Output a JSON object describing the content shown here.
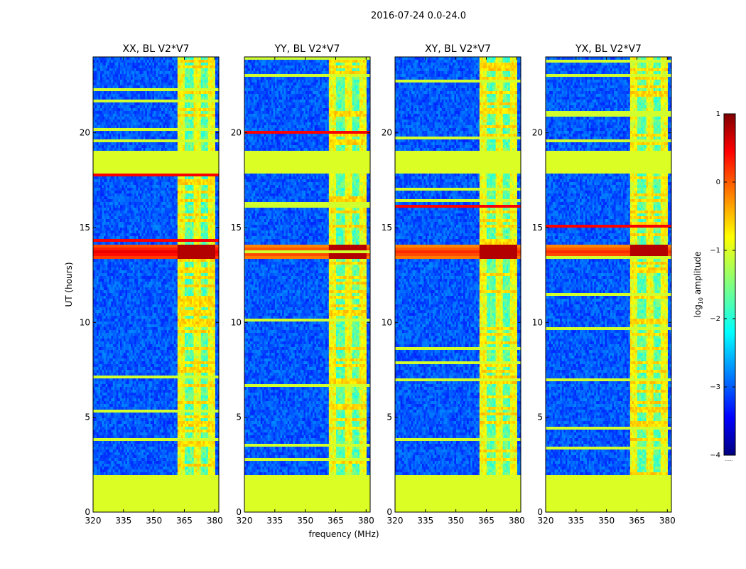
{
  "chart_data": {
    "type": "heatmap",
    "suptitle": "2016-07-24 0.0-24.0",
    "xlabel": "frequency (MHz)",
    "ylabel": "UT (hours)",
    "xlim": [
      320,
      382
    ],
    "ylim": [
      0,
      24
    ],
    "xticks": [
      320,
      335,
      350,
      365,
      380
    ],
    "yticks": [
      0,
      5,
      10,
      15,
      20
    ],
    "panels": [
      {
        "title": "XX, BL V2*V7"
      },
      {
        "title": "YY, BL V2*V7"
      },
      {
        "title": "XY, BL V2*V7"
      },
      {
        "title": "YX, BL V2*V7"
      }
    ],
    "colorbar": {
      "label_prefix": "log",
      "label_sub": "10",
      "label_suffix": " amplitude",
      "range": [
        -4,
        1
      ],
      "ticks": [
        1,
        0,
        -1,
        -2,
        -3,
        -4
      ],
      "tick_labels": [
        "1",
        "0",
        "−1",
        "−2",
        "−3",
        "−4"
      ],
      "extra_label": "......",
      "colormap": "jet"
    },
    "features": {
      "flagged_bands_ut": [
        [
          0,
          2.0
        ],
        [
          17.8,
          19.0
        ]
      ],
      "rfi_band_mhz": [
        362,
        380
      ],
      "strong_event_ut": [
        13.3,
        14.1
      ]
    }
  }
}
